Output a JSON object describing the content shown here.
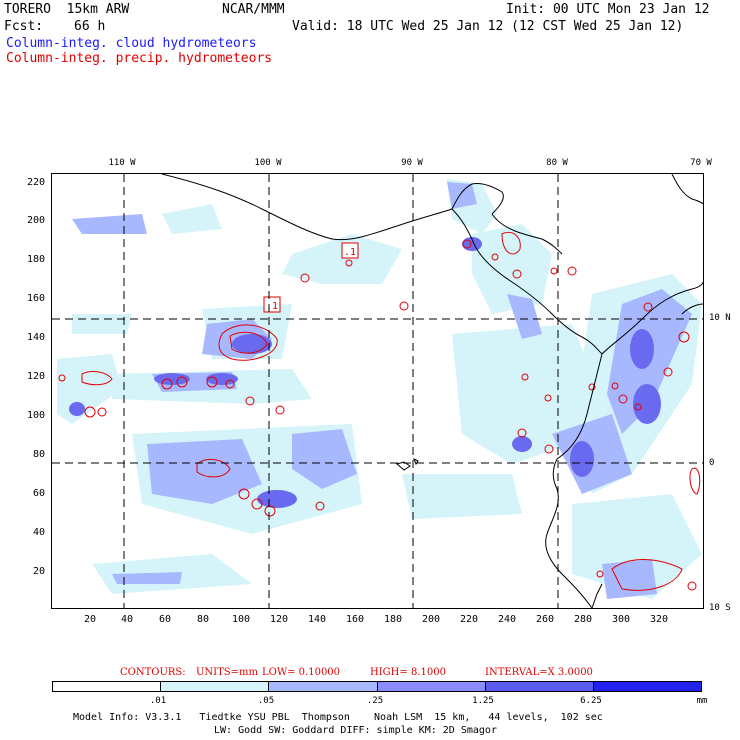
{
  "header": {
    "model": "TORERO  15km ARW",
    "org": "NCAR/MMM",
    "init": "Init: 00 UTC Mon 23 Jan 12",
    "fcst_label": "Fcst:",
    "fcst_value": "66 h",
    "valid": "Valid: 18 UTC Wed 25 Jan 12 (12 CST Wed 25 Jan 12)",
    "field_cloud": "Column-integ. cloud hydrometeors",
    "field_precip": "Column-integ. precip. hydrometeors"
  },
  "map": {
    "x_ticks": [
      "20",
      "40",
      "60",
      "80",
      "100",
      "120",
      "140",
      "160",
      "180",
      "200",
      "220",
      "240",
      "260",
      "280",
      "300",
      "320"
    ],
    "y_ticks": [
      "220",
      "200",
      "180",
      "160",
      "140",
      "120",
      "100",
      "80",
      "60",
      "40",
      "20"
    ],
    "lon_labels": [
      "110 W",
      "100 W",
      "90 W",
      "80 W",
      "70 W"
    ],
    "lat_labels": [
      "10 N",
      "0",
      "10 S"
    ],
    "contour_labels": [
      ".1",
      ".1"
    ]
  },
  "contours_info": {
    "label": "CONTOURS:",
    "units": "UNITS=mm",
    "low": "LOW= 0.10000",
    "high": "HIGH= 8.1000",
    "interval": "INTERVAL=X 3.0000"
  },
  "colorbar": {
    "labels": [
      ".01",
      ".05",
      ".25",
      "1.25",
      "6.25"
    ],
    "units": "mm",
    "colors": [
      "#ffffff",
      "#d4f4fa",
      "#a8b8ff",
      "#8c8cff",
      "#5a5aee",
      "#2222ee"
    ]
  },
  "footer": {
    "line1": "Model Info: V3.3.1   Tiedtke YSU PBL  Thompson    Noah LSM  15 km,   44 levels,  102 sec",
    "line2": "LW: Godd SW: Goddard DIFF: simple KM: 2D Smagor"
  }
}
